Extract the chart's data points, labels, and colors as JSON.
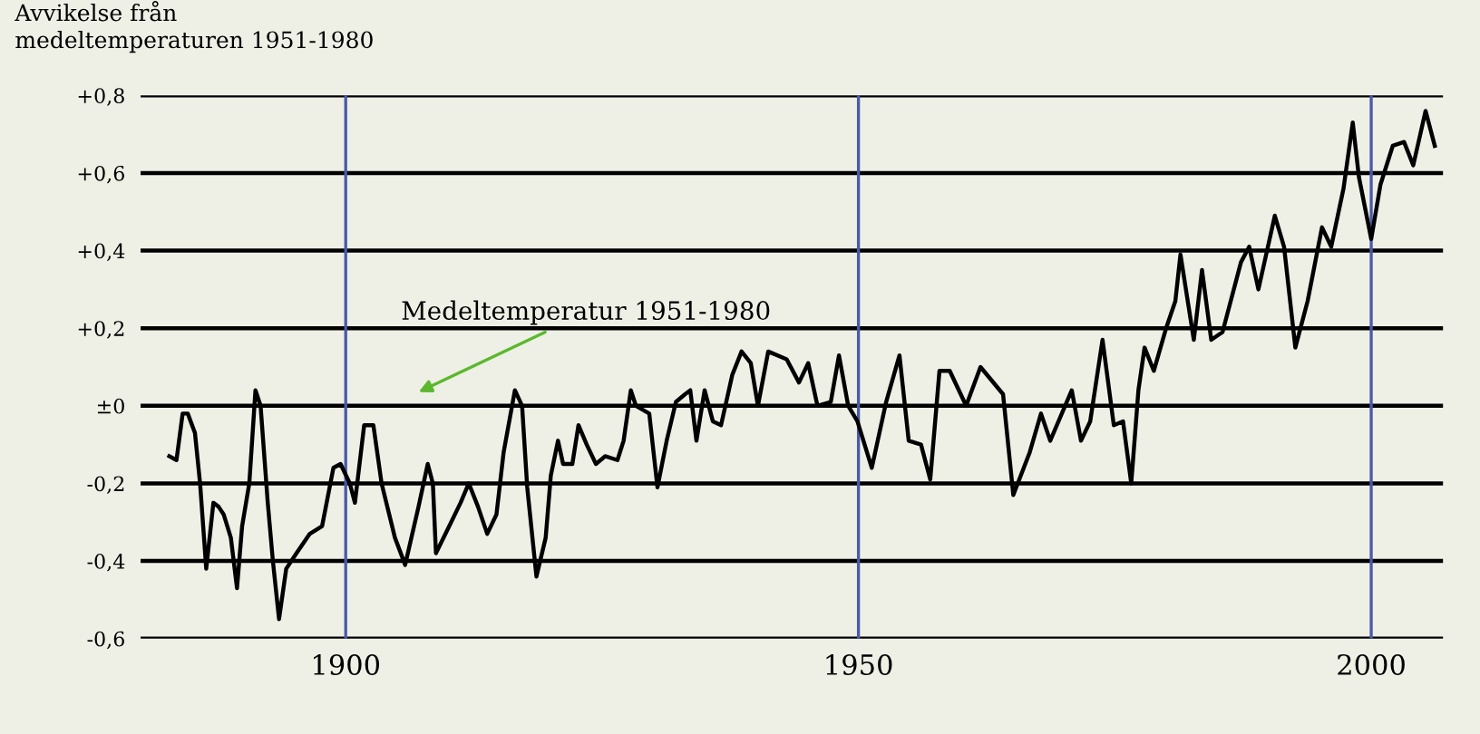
{
  "chart_data": {
    "type": "line",
    "ylabel": "Avvikelse från\nmedeltemperaturen 1951-1980",
    "annotations": [
      "Medeltemperatur 1951-1980"
    ],
    "xlim": [
      1880,
      2007
    ],
    "xticks": [
      1900,
      1950,
      2000
    ],
    "ylim": [
      -0.6,
      0.8
    ],
    "yticks": [
      {
        "value": 0.8,
        "label": "+0,8"
      },
      {
        "value": 0.6,
        "label": "+0,6"
      },
      {
        "value": 0.4,
        "label": "+0,4"
      },
      {
        "value": 0.2,
        "label": "+0,2"
      },
      {
        "value": 0,
        "label": "±0"
      },
      {
        "value": -0.2,
        "label": "-0,2"
      },
      {
        "value": -0.4,
        "label": "-0,4"
      },
      {
        "value": -0.6,
        "label": "-0,6"
      }
    ],
    "grid": true,
    "legend": false,
    "marker": "none",
    "line_style": "solid",
    "series": [
      {
        "color": "#000000",
        "x": [
          1882.8,
          1883.5,
          1884.1,
          1884.6,
          1885.3,
          1885.8,
          1886.4,
          1887.1,
          1887.6,
          1888.1,
          1888.8,
          1889.4,
          1889.9,
          1890.6,
          1891.2,
          1891.7,
          1892.4,
          1892.9,
          1893.5,
          1894.2,
          1895.2,
          1896.5,
          1897.7,
          1898.8,
          1899.5,
          1900.4,
          1900.9,
          1901.8,
          1902.7,
          1903.5,
          1904.8,
          1905.8,
          1907.1,
          1908.0,
          1908.5,
          1908.8,
          1910.1,
          1911.2,
          1912.0,
          1912.9,
          1913.8,
          1914.7,
          1915.4,
          1916.5,
          1917.2,
          1917.7,
          1918.6,
          1919.5,
          1920.0,
          1920.7,
          1921.2,
          1922.1,
          1922.7,
          1923.5,
          1924.4,
          1925.3,
          1926.5,
          1927.1,
          1927.8,
          1928.3,
          1929.6,
          1930.4,
          1931.3,
          1932.2,
          1933.1,
          1933.6,
          1934.2,
          1935.0,
          1935.8,
          1936.6,
          1937.7,
          1938.6,
          1939.5,
          1940.2,
          1941.2,
          1943.0,
          1944.2,
          1945.1,
          1946.0,
          1947.3,
          1948.1,
          1949.0,
          1949.9,
          1951.3,
          1952.7,
          1954.0,
          1954.9,
          1956.1,
          1957.0,
          1957.9,
          1958.9,
          1960.5,
          1961.9,
          1964.1,
          1965.1,
          1966.7,
          1967.8,
          1968.7,
          1970.8,
          1971.7,
          1972.6,
          1973.8,
          1974.9,
          1975.8,
          1976.6,
          1977.3,
          1977.9,
          1978.8,
          1980.0,
          1980.9,
          1981.4,
          1982.7,
          1983.5,
          1984.4,
          1985.5,
          1987.3,
          1988.1,
          1989.0,
          1990.6,
          1991.5,
          1992.6,
          1993.8,
          1995.2,
          1996.1,
          1997.3,
          1998.2,
          1998.8,
          2000.0,
          2000.9,
          2002.1,
          2003.2,
          2004.1,
          2005.3,
          2006.2
        ],
        "values": [
          -0.13,
          -0.14,
          -0.02,
          -0.02,
          -0.07,
          -0.2,
          -0.42,
          -0.25,
          -0.26,
          -0.28,
          -0.34,
          -0.47,
          -0.31,
          -0.2,
          0.04,
          0.0,
          -0.25,
          -0.4,
          -0.55,
          -0.42,
          -0.38,
          -0.33,
          -0.31,
          -0.16,
          -0.15,
          -0.2,
          -0.25,
          -0.05,
          -0.05,
          -0.2,
          -0.34,
          -0.41,
          -0.26,
          -0.15,
          -0.2,
          -0.38,
          -0.31,
          -0.25,
          -0.2,
          -0.26,
          -0.33,
          -0.28,
          -0.12,
          0.04,
          0.0,
          -0.21,
          -0.44,
          -0.34,
          -0.18,
          -0.09,
          -0.15,
          -0.15,
          -0.05,
          -0.1,
          -0.15,
          -0.13,
          -0.14,
          -0.09,
          0.04,
          0.0,
          -0.02,
          -0.21,
          -0.09,
          0.01,
          0.03,
          0.04,
          -0.09,
          0.04,
          -0.04,
          -0.05,
          0.08,
          0.14,
          0.11,
          0.0,
          0.14,
          0.12,
          0.06,
          0.11,
          0.0,
          0.01,
          0.13,
          0.0,
          -0.04,
          -0.16,
          0.01,
          0.13,
          -0.09,
          -0.1,
          -0.19,
          0.09,
          0.09,
          0.0,
          0.1,
          0.03,
          -0.23,
          -0.12,
          -0.02,
          -0.09,
          0.04,
          -0.09,
          -0.04,
          0.17,
          -0.05,
          -0.04,
          -0.2,
          0.04,
          0.15,
          0.09,
          0.2,
          0.27,
          0.39,
          0.17,
          0.35,
          0.17,
          0.19,
          0.37,
          0.41,
          0.3,
          0.49,
          0.41,
          0.15,
          0.27,
          0.46,
          0.41,
          0.56,
          0.73,
          0.59,
          0.43,
          0.57,
          0.67,
          0.68,
          0.62,
          0.76,
          0.67
        ]
      }
    ]
  }
}
